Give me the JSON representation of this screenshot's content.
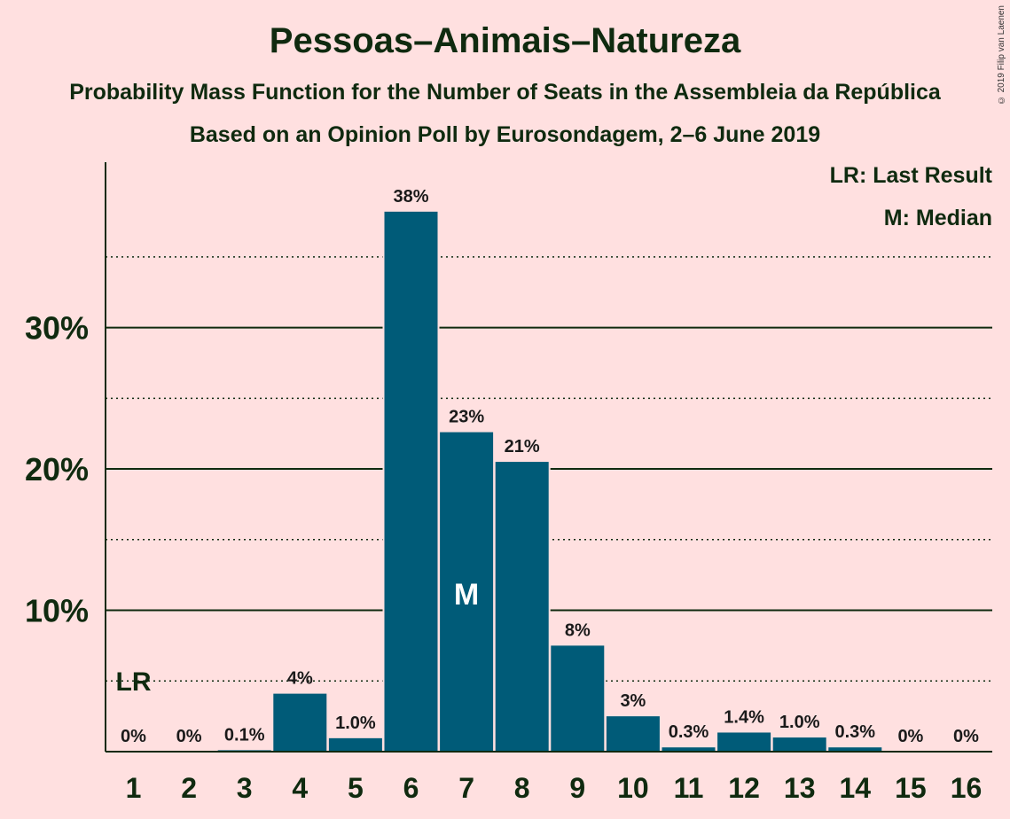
{
  "chart": {
    "title": "Pessoas–Animais–Natureza",
    "subtitle1": "Probability Mass Function for the Number of Seats in the Assembleia da República",
    "subtitle2": "Based on an Opinion Poll by Eurosondagem, 2–6 June 2019",
    "copyright": "© 2019 Filip van Laenen",
    "legend_lr": "LR: Last Result",
    "legend_m": "M: Median"
  },
  "chart_data": {
    "type": "bar",
    "categories": [
      "1",
      "2",
      "3",
      "4",
      "5",
      "6",
      "7",
      "8",
      "9",
      "10",
      "11",
      "12",
      "13",
      "14",
      "15",
      "16"
    ],
    "values": [
      0,
      0,
      0.1,
      4.1,
      0.95,
      38.2,
      22.6,
      20.5,
      7.5,
      2.5,
      0.3,
      1.35,
      1.0,
      0.3,
      0,
      0
    ],
    "value_labels": [
      "0%",
      "0%",
      "0.1%",
      "4%",
      "1.0%",
      "38%",
      "23%",
      "21%",
      "8%",
      "3%",
      "0.3%",
      "1.4%",
      "1.0%",
      "0.3%",
      "0%",
      "0%"
    ],
    "ylim": [
      0,
      41.7
    ],
    "yticks_major": [
      10,
      20,
      30
    ],
    "ytick_labels": [
      "10%",
      "20%",
      "30%"
    ],
    "yticks_minor": [
      5,
      15,
      25,
      35
    ],
    "last_result_category": "1",
    "last_result_label": "LR",
    "median_category": "7",
    "median_label": "M",
    "bar_color": "#005B78",
    "background": "#FFE0E0"
  }
}
